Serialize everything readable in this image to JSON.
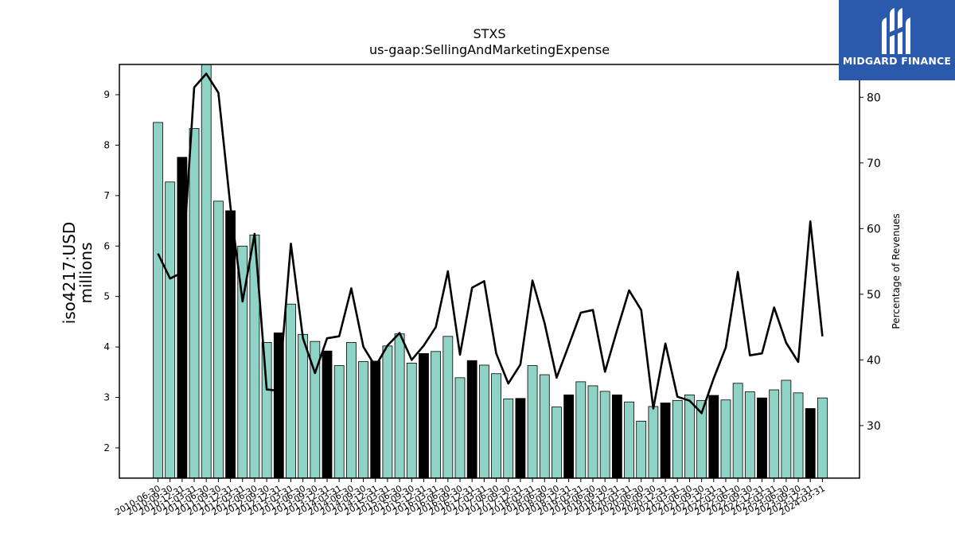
{
  "chart_data": {
    "type": "bar",
    "title": "STXS",
    "subtitle": "us-gaap:SellingAndMarketingExpense",
    "ylabel_left_line1": "iso4217:USD",
    "ylabel_left_line2": "millions",
    "ylabel_right": "Percentage of Revenues",
    "ylim_left": [
      1.4,
      9.6
    ],
    "ylim_right": [
      22,
      85
    ],
    "yticks_left": [
      2,
      3,
      4,
      5,
      6,
      7,
      8,
      9
    ],
    "yticks_right": [
      30,
      40,
      50,
      60,
      70,
      80
    ],
    "legend": "none",
    "grid": false,
    "categories": [
      "2010-06-30",
      "2010-09-30",
      "2010-12-31",
      "2011-03-31",
      "2011-06-30",
      "2011-09-30",
      "2011-12-31",
      "2012-03-31",
      "2012-06-30",
      "2012-09-30",
      "2012-12-31",
      "2013-03-31",
      "2013-06-30",
      "2013-09-30",
      "2013-12-31",
      "2014-03-31",
      "2014-06-30",
      "2014-09-30",
      "2014-12-31",
      "2015-03-31",
      "2015-06-30",
      "2015-09-30",
      "2015-12-31",
      "2016-03-31",
      "2016-06-30",
      "2016-09-30",
      "2016-12-31",
      "2017-03-31",
      "2017-06-30",
      "2017-09-30",
      "2017-12-31",
      "2018-03-31",
      "2018-06-30",
      "2018-09-30",
      "2018-12-31",
      "2019-03-31",
      "2019-06-30",
      "2019-09-30",
      "2019-12-31",
      "2020-03-31",
      "2020-06-30",
      "2020-09-30",
      "2020-12-31",
      "2021-03-31",
      "2021-06-30",
      "2021-09-30",
      "2021-12-31",
      "2022-03-31",
      "2022-06-30",
      "2022-09-30",
      "2022-12-31",
      "2023-03-31",
      "2023-06-30",
      "2023-09-30",
      "2023-12-31",
      "2024-03-31"
    ],
    "visible_tick_labels": [
      "2010-06-30",
      "2010-09-30",
      "2010-12-31",
      "2011-03-31",
      "2011-06-30",
      "2011-09-30",
      "2011-12-31",
      "2012-03-31",
      "2012-06-30",
      "2012-09-30",
      "2012-12-31",
      "2013-03-31",
      "2013-06-30",
      "2013-09-30",
      "2013-12-31",
      "2014-03-31",
      "2014-06-30",
      "2014-09-30",
      "2014-12-31",
      "2015-03-31",
      "2015-06-30",
      "2015-09-30",
      "2015-12-31",
      "2016-03-31",
      "2016-06-30",
      "2016-09-30",
      "2016-12-31",
      "2017-03-31",
      "2017-06-30",
      "2017-09-30",
      "2017-12-31",
      "2018-03-31",
      "2018-06-30",
      "2018-09-30",
      "2018-12-31",
      "2019-03-31",
      "2019-06-30",
      "2019-09-30",
      "2019-12-31",
      "2020-03-31",
      "2020-06-30",
      "2020-09-30",
      "2020-12-31",
      "2021-03-31",
      "2021-06-30",
      "2021-09-30",
      "2021-12-31",
      "2022-03-31",
      "2022-06-30",
      "2022-09-30",
      "2022-12-31",
      "2023-03-31",
      "2023-06-30",
      "2023-09-30",
      "2023-12-31",
      "2024-03-31"
    ],
    "series": [
      {
        "kind": "bar",
        "axis": "left",
        "values": [
          8.45,
          7.27,
          7.76,
          8.33,
          9.64,
          6.89,
          6.7,
          6.0,
          6.22,
          4.09,
          4.28,
          4.85,
          4.25,
          4.11,
          3.92,
          3.63,
          4.09,
          3.71,
          3.72,
          4.02,
          4.26,
          3.68,
          3.87,
          3.91,
          4.21,
          3.39,
          3.73,
          3.64,
          3.47,
          2.97,
          2.98,
          3.63,
          3.45,
          2.81,
          3.05,
          3.31,
          3.23,
          3.12,
          3.05,
          2.91,
          2.53,
          2.82,
          2.89,
          2.94,
          3.05,
          2.94,
          3.04,
          2.95,
          3.28,
          3.11,
          2.99,
          3.15,
          3.34,
          3.09,
          2.78,
          2.99
        ],
        "highlight": [
          false,
          false,
          true,
          false,
          false,
          false,
          true,
          false,
          false,
          false,
          true,
          false,
          false,
          false,
          true,
          false,
          false,
          false,
          true,
          false,
          false,
          false,
          true,
          false,
          false,
          false,
          true,
          false,
          false,
          false,
          true,
          false,
          false,
          false,
          true,
          false,
          false,
          false,
          true,
          false,
          false,
          false,
          true,
          false,
          false,
          false,
          true,
          false,
          false,
          false,
          true,
          false,
          false,
          false,
          true,
          false
        ]
      },
      {
        "kind": "line",
        "axis": "right",
        "values": [
          56.2,
          52.4,
          53.3,
          81.5,
          83.6,
          80.7,
          63.3,
          48.9,
          59.2,
          35.5,
          35.3,
          57.7,
          43.3,
          38.0,
          43.3,
          43.6,
          50.9,
          42.0,
          39.0,
          42.2,
          44.1,
          40.0,
          42.2,
          45.0,
          53.5,
          40.8,
          51.0,
          52.0,
          41.0,
          36.4,
          39.3,
          52.1,
          45.6,
          37.3,
          42.2,
          47.2,
          47.6,
          38.2,
          44.5,
          50.6,
          47.6,
          32.6,
          42.5,
          34.4,
          33.8,
          31.9,
          37.2,
          41.9,
          53.4,
          40.7,
          41.0,
          48.0,
          42.6,
          39.7,
          61.1,
          43.6
        ]
      }
    ],
    "colors": {
      "bar": "#8fd3c6",
      "bar_highlight": "#000000",
      "line": "#000000"
    }
  },
  "logo": {
    "text": "MIDGARD FINANCE",
    "icon": "midgard-logo-icon"
  }
}
